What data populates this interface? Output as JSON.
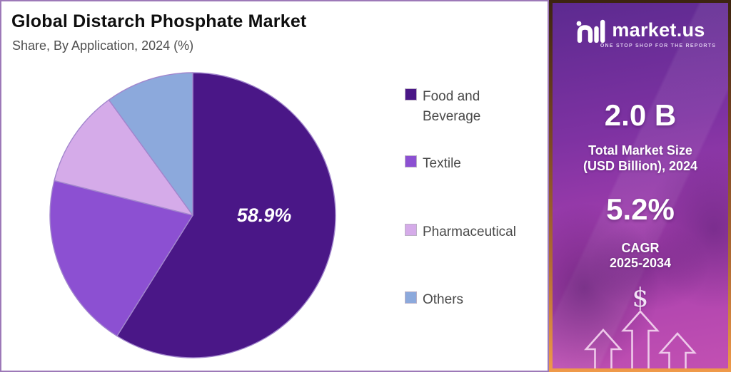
{
  "panel": {
    "title": "Global Distarch Phosphate Market",
    "subtitle": "Share, By Application, 2024 (%)"
  },
  "chart_data": {
    "type": "pie",
    "title": "Global Distarch Phosphate Market",
    "subtitle": "Share, By Application, 2024 (%)",
    "categories": [
      "Food and Beverage",
      "Textile",
      "Pharmaceutical",
      "Others"
    ],
    "values": [
      58.9,
      20.0,
      11.1,
      10.0
    ],
    "colors": [
      "#4a1787",
      "#8c50d2",
      "#d5abe9",
      "#8ca9dc"
    ],
    "start_angle_deg": 0,
    "direction": "clockwise",
    "slice_stroke": "#a286cd",
    "legend_position": "right",
    "data_label": {
      "text": "58.9%",
      "slice": "Food and Beverage",
      "color": "#ffffff"
    }
  },
  "sidebar": {
    "logo_text": "market.us",
    "logo_tagline": "ONE STOP SHOP FOR THE REPORTS",
    "market_size_value": "2.0 B",
    "market_size_label_line1": "Total Market Size",
    "market_size_label_line2": "(USD Billion), 2024",
    "cagr_value": "5.2%",
    "cagr_label_line1": "CAGR",
    "cagr_label_line2": "2025-2034",
    "dollar_symbol": "$",
    "colors": {
      "background_top": "#5c2a90",
      "background_bottom": "#c250b2",
      "border_bottom": "#ef9a4a",
      "arrow_outline": "#eec9ea"
    }
  }
}
